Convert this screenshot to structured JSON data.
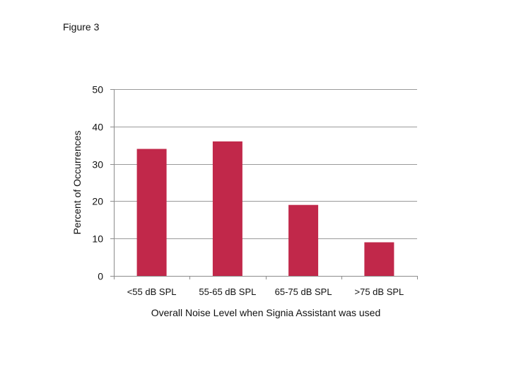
{
  "figure_label": "Figure 3",
  "chart_data": {
    "type": "bar",
    "title": "",
    "categories": [
      "<55 dB SPL",
      "55-65 dB SPL",
      "65-75 dB SPL",
      ">75 dB SPL"
    ],
    "values": [
      34,
      36,
      19,
      9
    ],
    "xlabel": "Overall Noise Level when Signia Assistant was used",
    "ylabel": "Percent  of  Occurrences",
    "ylim": [
      0,
      50
    ],
    "yticks": [
      0,
      10,
      20,
      30,
      40,
      50
    ],
    "grid": true,
    "legend": "none",
    "bar_color": "#c1284a",
    "grid_color": "#9a9a9a",
    "axis_color": "#8c8c8c"
  }
}
